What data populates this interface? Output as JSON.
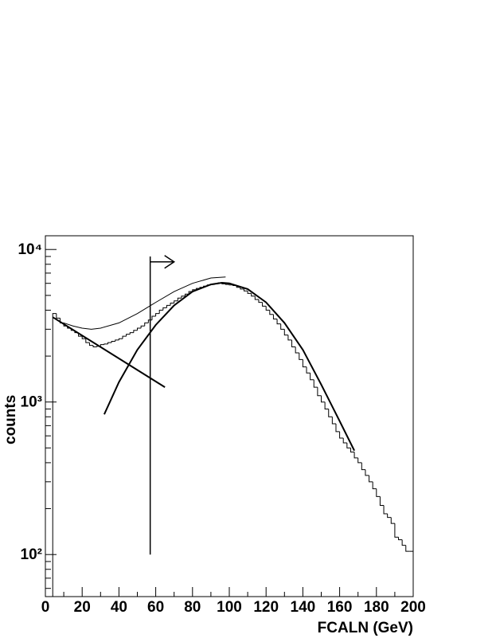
{
  "chart_data": {
    "type": "histogram",
    "log_y": true,
    "xlabel": "FCALN (GeV)",
    "ylabel": "counts",
    "bins": [
      4,
      6,
      8,
      10,
      12,
      14,
      16,
      18,
      20,
      22,
      24,
      26,
      28,
      30,
      32,
      34,
      36,
      38,
      40,
      42,
      44,
      46,
      48,
      50,
      52,
      54,
      56,
      58,
      60,
      62,
      64,
      66,
      68,
      70,
      72,
      74,
      76,
      78,
      80,
      82,
      84,
      86,
      88,
      90,
      92,
      94,
      96,
      98,
      100,
      102,
      104,
      106,
      108,
      110,
      112,
      114,
      116,
      118,
      120,
      122,
      124,
      126,
      128,
      130,
      132,
      134,
      136,
      138,
      140,
      142,
      144,
      146,
      148,
      150,
      152,
      154,
      156,
      158,
      160,
      162,
      164,
      166,
      168,
      170,
      172,
      174,
      176,
      178,
      180,
      182,
      184,
      186,
      188,
      190,
      192,
      194,
      196,
      198,
      200
    ],
    "values": [
      3800,
      3550,
      3300,
      3150,
      3050,
      2950,
      2850,
      2700,
      2600,
      2450,
      2350,
      2300,
      2320,
      2380,
      2400,
      2450,
      2500,
      2550,
      2600,
      2700,
      2780,
      2850,
      2950,
      3050,
      3150,
      3300,
      3450,
      3650,
      3800,
      4000,
      4150,
      4300,
      4450,
      4600,
      4800,
      4950,
      5100,
      5300,
      5450,
      5550,
      5650,
      5750,
      5850,
      5900,
      5950,
      6050,
      5950,
      5900,
      5850,
      5800,
      5650,
      5500,
      5350,
      5150,
      4950,
      4700,
      4500,
      4250,
      4000,
      3750,
      3500,
      3250,
      3000,
      2750,
      2550,
      2300,
      2100,
      1900,
      1700,
      1550,
      1400,
      1250,
      1100,
      1000,
      900,
      800,
      720,
      640,
      580,
      540,
      500,
      470,
      430,
      400,
      360,
      330,
      300,
      270,
      240,
      210,
      185,
      175,
      160,
      130,
      125,
      115,
      105,
      105
    ],
    "color": "#000000",
    "curves": [
      {
        "x": [
          10,
          15,
          20,
          25,
          30,
          40,
          50,
          60,
          70,
          80,
          90,
          98
        ],
        "values": [
          3300,
          3150,
          3050,
          3000,
          3050,
          3300,
          3800,
          4500,
          5300,
          6000,
          6500,
          6600
        ],
        "width": 1
      },
      {
        "x": [
          4,
          65
        ],
        "values": [
          3600,
          1250
        ],
        "width": 2
      },
      {
        "x": [
          32,
          40,
          50,
          60,
          70,
          80,
          90,
          96,
          100,
          110,
          120,
          130,
          140,
          150,
          160,
          168
        ],
        "values": [
          830,
          1350,
          2200,
          3200,
          4300,
          5300,
          5900,
          6050,
          6000,
          5500,
          4500,
          3300,
          2200,
          1300,
          750,
          480
        ],
        "width": 2
      }
    ],
    "cut": {
      "x": 57,
      "y": [
        100,
        9000
      ],
      "arrow_to": 70,
      "arrow_y": 8300
    },
    "xlim": [
      0,
      200
    ],
    "xticks": [
      0,
      20,
      40,
      60,
      80,
      100,
      120,
      140,
      160,
      180,
      200
    ],
    "xminorticks": [
      10,
      30,
      50,
      70,
      90,
      110,
      130,
      150,
      170,
      190
    ],
    "ylim": [
      53,
      12300
    ],
    "yticks": [
      {
        "value": 100,
        "label": "10²"
      },
      {
        "value": 1000,
        "label": "10³"
      },
      {
        "value": 10000,
        "label": "10⁴"
      }
    ],
    "yminorticks": [
      60,
      70,
      80,
      90,
      200,
      300,
      400,
      500,
      600,
      700,
      800,
      900,
      2000,
      3000,
      4000,
      5000,
      6000,
      7000,
      8000,
      9000
    ]
  }
}
